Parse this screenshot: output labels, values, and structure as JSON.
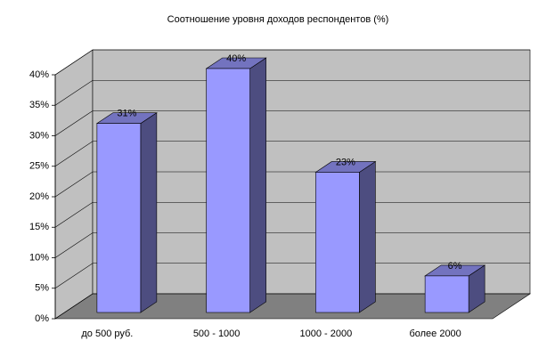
{
  "chart_data": {
    "type": "bar3d",
    "title": "Соотношение уровня доходов респондентов (%)",
    "categories": [
      "до 500 руб.",
      "500 - 1000",
      "1000 - 2000",
      "более 2000"
    ],
    "values": [
      31,
      40,
      23,
      6
    ],
    "value_labels": [
      "31%",
      "40%",
      "23%",
      "6%"
    ],
    "color": "#9999ff",
    "ylim": [
      0,
      40
    ],
    "yticks": [
      {
        "value": 0,
        "label": "0%"
      },
      {
        "value": 5,
        "label": "5%"
      },
      {
        "value": 10,
        "label": "10%"
      },
      {
        "value": 15,
        "label": "15%"
      },
      {
        "value": 20,
        "label": "20%"
      },
      {
        "value": 25,
        "label": "25%"
      },
      {
        "value": 30,
        "label": "30%"
      },
      {
        "value": 35,
        "label": "35%"
      },
      {
        "value": 40,
        "label": "40%"
      }
    ],
    "grid": true
  }
}
